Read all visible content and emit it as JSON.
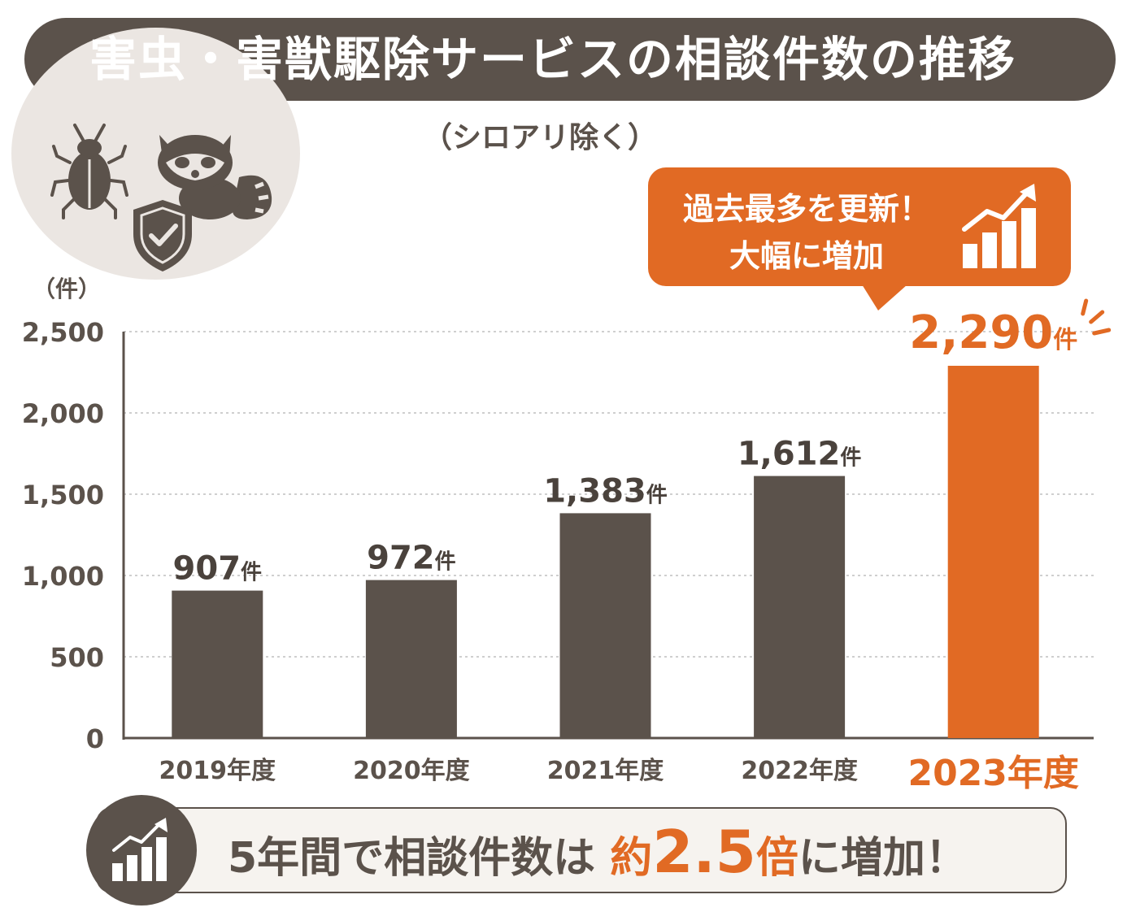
{
  "header": {
    "title": "害虫・害獣駆除サービスの相談件数の推移",
    "subtitle": "（シロアリ除く）"
  },
  "icons": [
    "beetle-icon",
    "raccoon-icon",
    "shield-check-icon",
    "growth-chart-icon"
  ],
  "callout": {
    "line1": "過去最多を更新！",
    "line2": "大幅に増加"
  },
  "colors": {
    "bar": "#5b524b",
    "highlight": "#e16a24",
    "title_bg": "#5b524b",
    "grid": "#cfcfcf"
  },
  "chart_data": {
    "type": "bar",
    "title": "害虫・害獣駆除サービスの相談件数の推移",
    "ylabel": "（件）",
    "xlabel": "",
    "categories": [
      "2019年度",
      "2020年度",
      "2021年度",
      "2022年度",
      "2023年度"
    ],
    "values": [
      907,
      972,
      1383,
      1612,
      2290
    ],
    "value_labels": [
      "907",
      "972",
      "1,383",
      "1,612",
      "2,290"
    ],
    "value_unit": "件",
    "ylim": [
      0,
      2500
    ],
    "yticks": [
      0,
      500,
      1000,
      1500,
      2000,
      2500
    ],
    "ytick_labels": [
      "0",
      "500",
      "1,000",
      "1,500",
      "2,000",
      "2,500"
    ],
    "highlight_category": "2023年度",
    "grid": "horizontal-dotted"
  },
  "summary": {
    "prefix": "5年間で相談件数は",
    "highlight_prefix": "約",
    "highlight_value": "2.5",
    "highlight_suffix": "倍",
    "suffix": "に増加！"
  }
}
